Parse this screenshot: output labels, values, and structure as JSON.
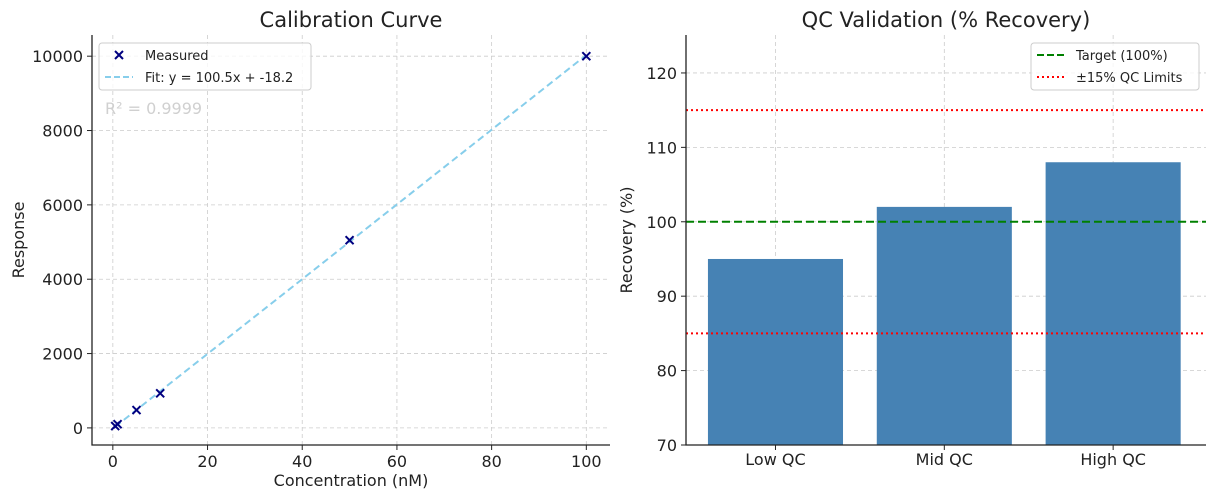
{
  "chart_data": [
    {
      "type": "scatter",
      "title": "Calibration Curve",
      "xlabel": "Concentration (nM)",
      "ylabel": "Response",
      "xlim": [
        -4.4,
        105
      ],
      "ylim": [
        -460,
        10570
      ],
      "xticks": [
        0,
        20,
        40,
        60,
        80,
        100
      ],
      "yticks": [
        0,
        2000,
        4000,
        6000,
        8000,
        10000
      ],
      "grid": true,
      "legend_placement": "top-left",
      "series": [
        {
          "name": "Measured",
          "kind": "scatter",
          "marker": "x",
          "color": "#000080",
          "x": [
            0.5,
            1,
            5,
            10,
            50,
            100
          ],
          "y": [
            50,
            100,
            480,
            930,
            5050,
            10000
          ]
        },
        {
          "name": "Fit: y = 100.5x + -18.2",
          "kind": "line",
          "style": "dashed",
          "color": "#87ceeb",
          "slope": 100.5,
          "intercept": -18.2,
          "x": [
            0.5,
            100
          ]
        }
      ],
      "annotation": "R² = 0.9999"
    },
    {
      "type": "bar",
      "title": "QC Validation (% Recovery)",
      "xlabel": "",
      "ylabel": "Recovery (%)",
      "categories": [
        "Low QC",
        "Mid QC",
        "High QC"
      ],
      "values": [
        95,
        102,
        108
      ],
      "bar_color": "#4682b4",
      "xlim": [
        -0.53,
        2.55
      ],
      "ylim": [
        70,
        125.1
      ],
      "yticks": [
        70,
        80,
        90,
        100,
        110,
        120
      ],
      "grid": true,
      "legend_placement": "top-right",
      "reference_lines": [
        {
          "name": "Target (100%)",
          "values": [
            100
          ],
          "color": "#008000",
          "style": "dashed"
        },
        {
          "name": "±15% QC Limits",
          "values": [
            85,
            115
          ],
          "color": "#ff0000",
          "style": "dotted"
        }
      ]
    }
  ]
}
